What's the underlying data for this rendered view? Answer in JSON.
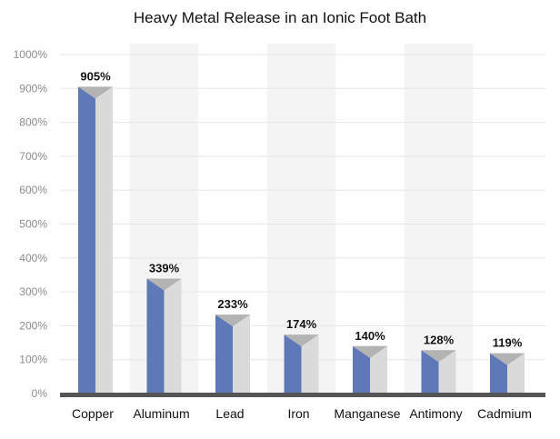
{
  "chart_data": {
    "type": "bar",
    "title": "Heavy Metal Release in an Ionic Foot Bath",
    "xlabel": "",
    "ylabel": "",
    "ylim": [
      0,
      1000
    ],
    "yticks": [
      0,
      100,
      200,
      300,
      400,
      500,
      600,
      700,
      800,
      900,
      1000
    ],
    "ytick_labels": [
      "0%",
      "100%",
      "200%",
      "300%",
      "400%",
      "500%",
      "600%",
      "700%",
      "800%",
      "900%",
      "1000%"
    ],
    "categories": [
      "Copper",
      "Aluminum",
      "Lead",
      "Iron",
      "Manganese",
      "Antimony",
      "Cadmium"
    ],
    "values": [
      905,
      339,
      233,
      174,
      140,
      128,
      119
    ],
    "data_labels": [
      "905%",
      "339%",
      "233%",
      "174%",
      "140%",
      "128%",
      "119%"
    ],
    "grid": true,
    "legend": "none"
  },
  "colors": {
    "bar_front": "#5f78b8",
    "bar_side": "#dadada",
    "bar_top": "#b3b3b3",
    "column_band": "#f4f4f4",
    "gridline": "#e6e6e6",
    "baseline": "#555555"
  }
}
